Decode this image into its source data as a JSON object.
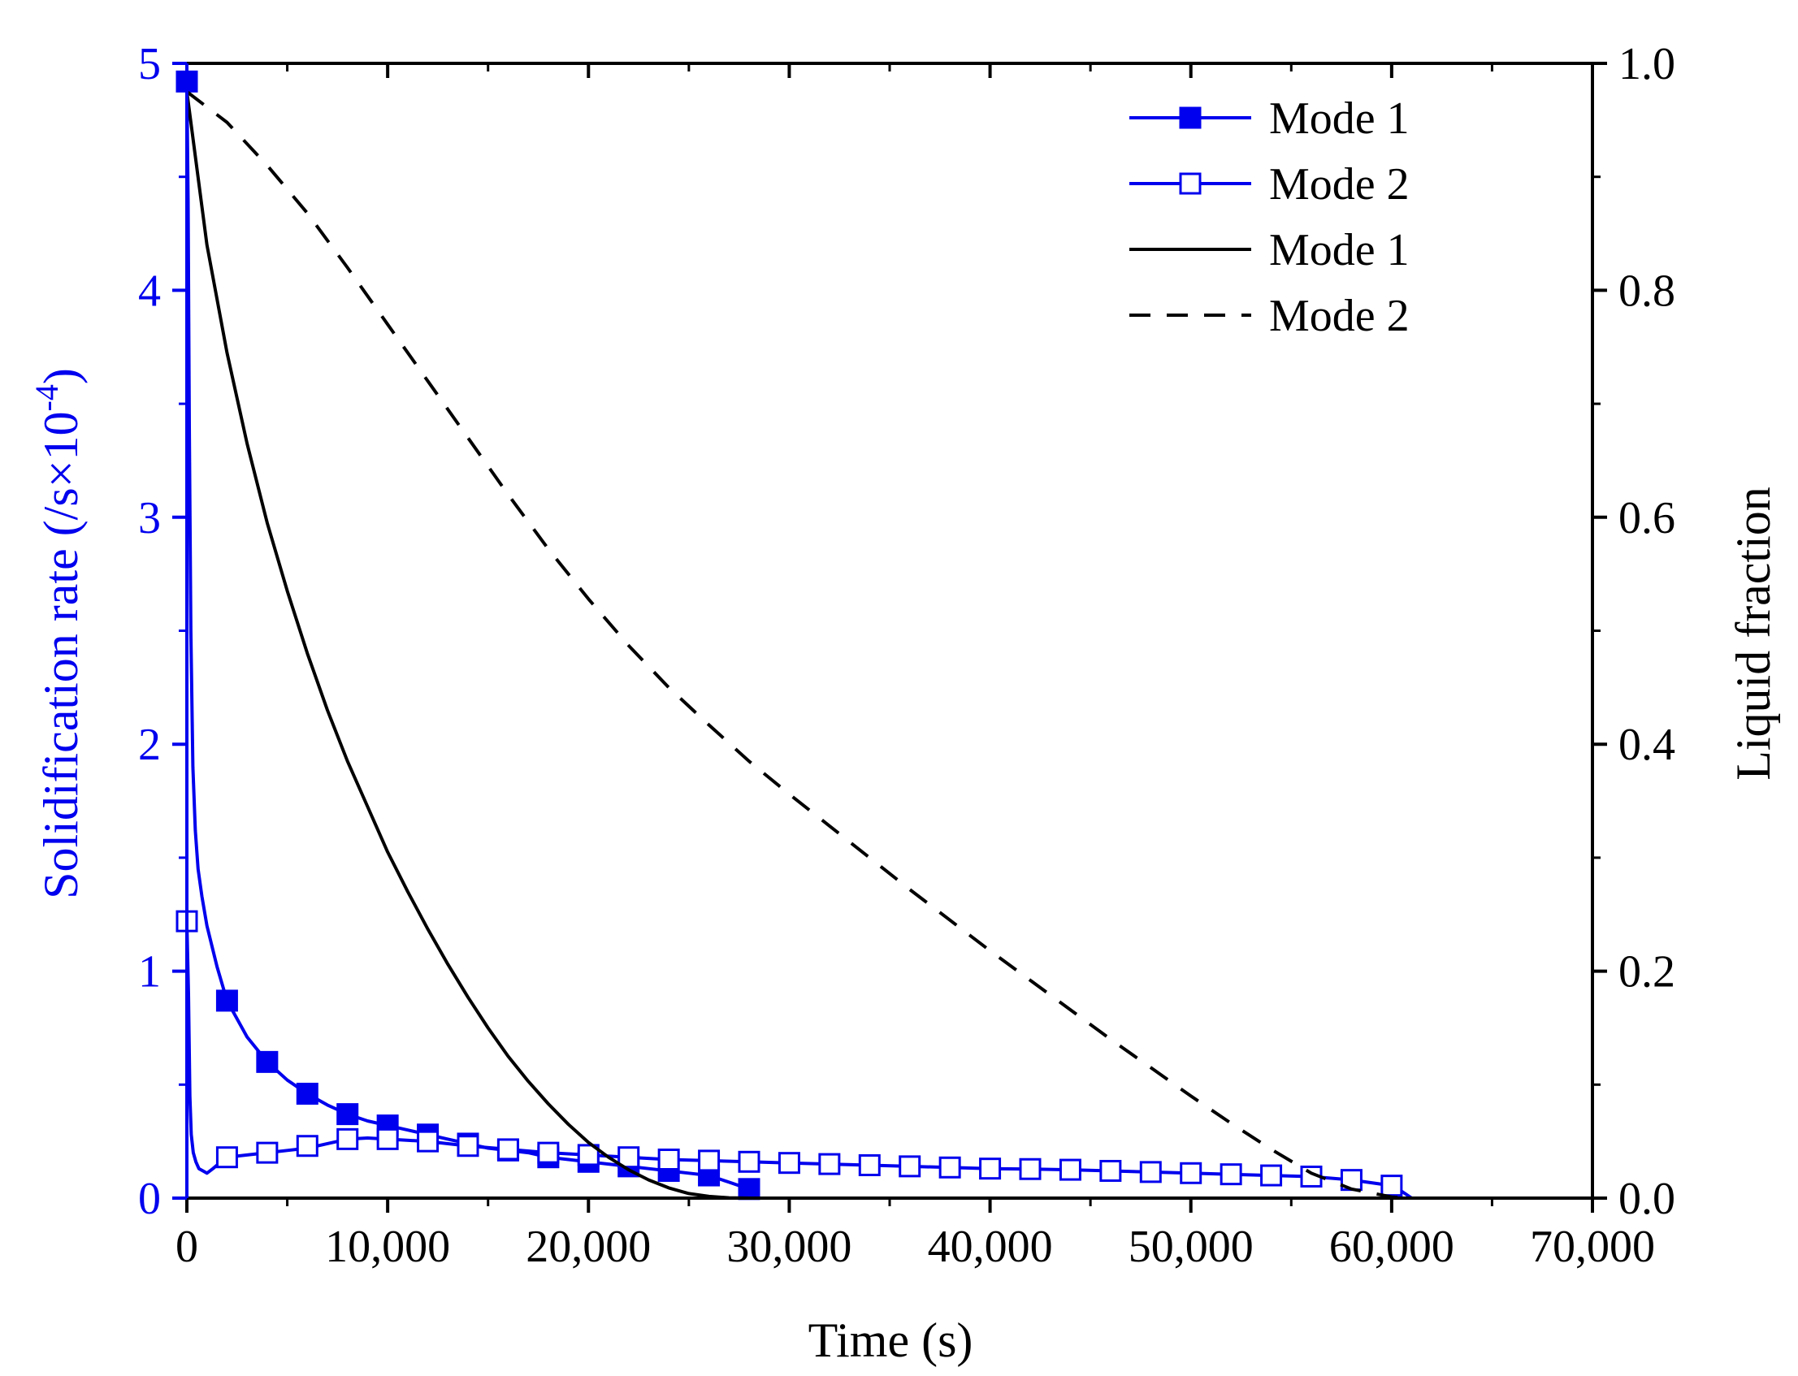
{
  "chart_data": {
    "type": "line",
    "xlabel": "Time (s)",
    "ylabel_left": "Solidification rate (/s×10",
    "ylabel_left_sup": "-4",
    "ylabel_left_close": ")",
    "ylabel_right": "Liquid fraction",
    "xlim": [
      0,
      70000
    ],
    "ylim_left": [
      0,
      5
    ],
    "ylim_right": [
      0,
      1.0
    ],
    "x_ticks": [
      0,
      10000,
      20000,
      30000,
      40000,
      50000,
      60000,
      70000
    ],
    "x_tick_labels": [
      "0",
      "10,000",
      "20,000",
      "30,000",
      "40,000",
      "50,000",
      "60,000",
      "70,000"
    ],
    "y_left_ticks": [
      0,
      1,
      2,
      3,
      4,
      5
    ],
    "y_left_tick_labels": [
      "0",
      "1",
      "2",
      "3",
      "4",
      "5"
    ],
    "y_right_ticks": [
      0,
      0.2,
      0.4,
      0.6,
      0.8,
      1.0
    ],
    "y_right_tick_labels": [
      "0.0",
      "0.2",
      "0.4",
      "0.6",
      "0.8",
      "1.0"
    ],
    "colors": {
      "rate": "#0000ee",
      "fraction": "#000000",
      "left_axis": "#0000ee"
    },
    "legend_position": "top-right",
    "legend": [
      {
        "label": "Mode 1",
        "style": "solid-filled-square",
        "color": "#0000ee"
      },
      {
        "label": "Mode 2",
        "style": "solid-open-square",
        "color": "#0000ee"
      },
      {
        "label": "Mode 1",
        "style": "solid",
        "color": "#000000"
      },
      {
        "label": "Mode 2",
        "style": "dashed",
        "color": "#000000"
      }
    ],
    "series": [
      {
        "name": "Mode 1",
        "axis": "left",
        "style": "solid-filled-square",
        "x": [
          0,
          60,
          120,
          200,
          300,
          420,
          560,
          750,
          1000,
          1500,
          2000,
          3000,
          4000,
          5000,
          6000,
          7000,
          8000,
          9000,
          10000,
          11000,
          12000,
          13000,
          14000,
          15000,
          16000,
          17000,
          18000,
          19000,
          20000,
          21000,
          22000,
          23000,
          24000,
          25000,
          26000,
          27000,
          28000
        ],
        "y": [
          4.92,
          4.4,
          3.4,
          2.5,
          1.9,
          1.62,
          1.45,
          1.33,
          1.2,
          1.02,
          0.87,
          0.71,
          0.6,
          0.52,
          0.46,
          0.41,
          0.37,
          0.34,
          0.32,
          0.3,
          0.28,
          0.26,
          0.24,
          0.22,
          0.21,
          0.2,
          0.18,
          0.17,
          0.16,
          0.15,
          0.14,
          0.13,
          0.12,
          0.11,
          0.1,
          0.07,
          0.04
        ],
        "markers_x": [
          0,
          2000,
          4000,
          6000,
          8000,
          10000,
          12000,
          14000,
          16000,
          18000,
          20000,
          22000,
          24000,
          26000,
          28000
        ],
        "markers_y": [
          4.92,
          0.87,
          0.6,
          0.46,
          0.37,
          0.32,
          0.28,
          0.24,
          0.21,
          0.18,
          0.16,
          0.14,
          0.12,
          0.1,
          0.04
        ]
      },
      {
        "name": "Mode 2",
        "axis": "left",
        "style": "solid-open-square",
        "x": [
          0,
          80,
          150,
          220,
          320,
          450,
          600,
          800,
          1000,
          1300,
          1700,
          2000,
          3000,
          4000,
          5000,
          6000,
          7000,
          8000,
          9000,
          10000,
          12000,
          14000,
          16000,
          18000,
          20000,
          22000,
          24000,
          26000,
          28000,
          30000,
          32000,
          34000,
          36000,
          38000,
          40000,
          42000,
          44000,
          46000,
          48000,
          50000,
          52000,
          54000,
          56000,
          58000,
          60000,
          60500,
          61000
        ],
        "y": [
          1.22,
          0.9,
          0.45,
          0.28,
          0.2,
          0.16,
          0.13,
          0.12,
          0.11,
          0.13,
          0.16,
          0.18,
          0.19,
          0.2,
          0.21,
          0.22,
          0.24,
          0.26,
          0.265,
          0.26,
          0.25,
          0.23,
          0.215,
          0.2,
          0.19,
          0.18,
          0.17,
          0.165,
          0.16,
          0.155,
          0.15,
          0.145,
          0.14,
          0.135,
          0.13,
          0.128,
          0.125,
          0.12,
          0.115,
          0.11,
          0.105,
          0.1,
          0.095,
          0.08,
          0.055,
          0.03,
          0.0
        ],
        "markers_x": [
          0,
          2000,
          4000,
          6000,
          8000,
          10000,
          12000,
          14000,
          16000,
          18000,
          20000,
          22000,
          24000,
          26000,
          28000,
          30000,
          32000,
          34000,
          36000,
          38000,
          40000,
          42000,
          44000,
          46000,
          48000,
          50000,
          52000,
          54000,
          56000,
          58000,
          60000
        ],
        "markers_y": [
          1.22,
          0.18,
          0.2,
          0.23,
          0.26,
          0.26,
          0.25,
          0.23,
          0.215,
          0.2,
          0.19,
          0.18,
          0.17,
          0.165,
          0.16,
          0.155,
          0.15,
          0.145,
          0.14,
          0.135,
          0.13,
          0.128,
          0.125,
          0.12,
          0.115,
          0.11,
          0.105,
          0.1,
          0.095,
          0.08,
          0.055
        ]
      },
      {
        "name": "Mode 1",
        "axis": "right",
        "style": "solid",
        "x": [
          0,
          1000,
          2000,
          3000,
          4000,
          5000,
          6000,
          7000,
          8000,
          9000,
          10000,
          11000,
          12000,
          13000,
          14000,
          15000,
          16000,
          17000,
          18000,
          19000,
          20000,
          21000,
          22000,
          23000,
          24000,
          25000,
          26000,
          27000,
          28000
        ],
        "y": [
          0.975,
          0.84,
          0.745,
          0.665,
          0.595,
          0.535,
          0.48,
          0.43,
          0.385,
          0.345,
          0.305,
          0.27,
          0.237,
          0.206,
          0.177,
          0.15,
          0.125,
          0.103,
          0.083,
          0.065,
          0.049,
          0.036,
          0.025,
          0.016,
          0.009,
          0.004,
          0.0015,
          0.0003,
          0.0
        ]
      },
      {
        "name": "Mode 2",
        "axis": "right",
        "style": "dashed",
        "x": [
          0,
          2000,
          4000,
          6000,
          8000,
          10000,
          12000,
          14000,
          16000,
          18000,
          20000,
          22000,
          24000,
          26000,
          28000,
          30000,
          32000,
          34000,
          36000,
          38000,
          40000,
          42000,
          44000,
          46000,
          48000,
          50000,
          52000,
          54000,
          56000,
          58000,
          60000,
          60600
        ],
        "y": [
          0.975,
          0.948,
          0.91,
          0.868,
          0.82,
          0.77,
          0.72,
          0.67,
          0.62,
          0.572,
          0.528,
          0.487,
          0.45,
          0.417,
          0.385,
          0.356,
          0.328,
          0.3,
          0.272,
          0.245,
          0.218,
          0.192,
          0.166,
          0.14,
          0.115,
          0.09,
          0.066,
          0.043,
          0.022,
          0.008,
          0.001,
          0.0
        ]
      }
    ]
  }
}
